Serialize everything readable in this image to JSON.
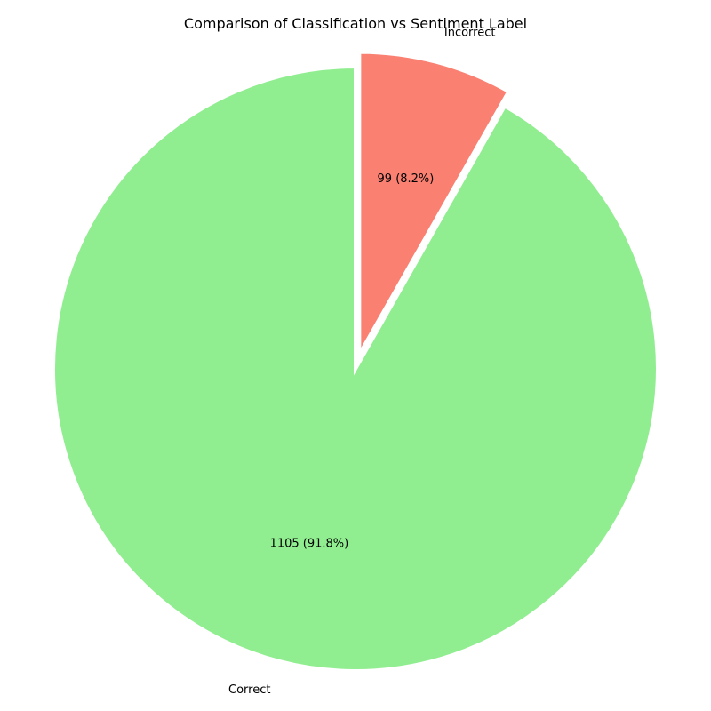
{
  "chart_data": {
    "type": "pie",
    "title": "Comparison of Classification vs Sentiment Label",
    "start_angle_deg": 90,
    "direction": "clockwise",
    "slices": [
      {
        "label": "Incorrect",
        "value": 99,
        "percent_label": "99 (8.2%)",
        "color": "#fa8072",
        "exploded": true
      },
      {
        "label": "Correct",
        "value": 1105,
        "percent_label": "1105 (91.8%)",
        "color": "#90ee90",
        "exploded": false
      }
    ]
  }
}
